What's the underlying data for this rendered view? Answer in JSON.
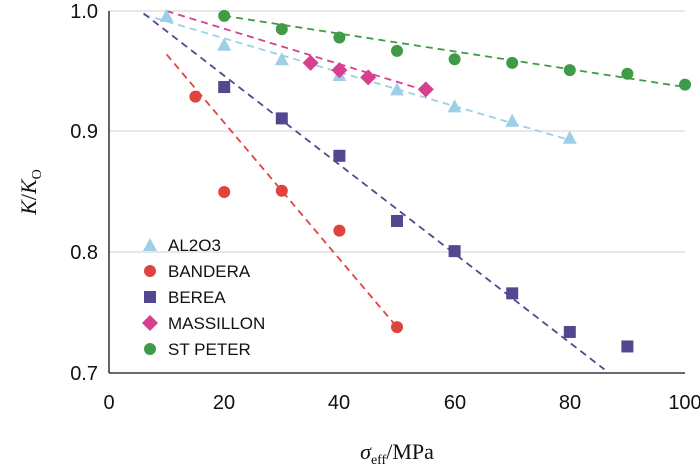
{
  "chart_data": {
    "type": "scatter",
    "xlabel": {
      "symbol": "σ",
      "sub": "eff",
      "unit": "/MPa"
    },
    "ylabel": {
      "k": "K",
      "slash": "/",
      "k0": "K",
      "sub": "O"
    },
    "xlim": [
      0,
      100
    ],
    "ylim": [
      0.7,
      1.0
    ],
    "xticks": [
      0,
      20,
      40,
      60,
      80,
      100
    ],
    "yticks": [
      0.7,
      0.8,
      0.9,
      1.0
    ],
    "xtick_labels": [
      "0",
      "20",
      "40",
      "60",
      "80",
      "100"
    ],
    "ytick_labels": [
      "0.7",
      "0.8",
      "0.9",
      "1.0"
    ],
    "legend_position": "bottom-left",
    "series": [
      {
        "name": "AL2O3",
        "marker": "triangle",
        "color": "#9ecfe6",
        "x": [
          10,
          20,
          30,
          40,
          50,
          60,
          70,
          80
        ],
        "y": [
          0.996,
          0.972,
          0.96,
          0.947,
          0.935,
          0.921,
          0.909,
          0.895
        ],
        "fit": {
          "x": [
            6,
            80
          ],
          "y": [
            0.997,
            0.893
          ]
        }
      },
      {
        "name": "BANDERA",
        "marker": "circle",
        "color": "#e0433d",
        "x": [
          15,
          20,
          30,
          40,
          50
        ],
        "y": [
          0.929,
          0.85,
          0.851,
          0.818,
          0.738
        ],
        "fit": {
          "x": [
            10,
            50
          ],
          "y": [
            0.964,
            0.738
          ]
        }
      },
      {
        "name": "BEREA",
        "marker": "square",
        "color": "#54478f",
        "x": [
          20,
          30,
          40,
          50,
          60,
          70,
          80,
          90
        ],
        "y": [
          0.937,
          0.911,
          0.88,
          0.826,
          0.801,
          0.766,
          0.734,
          0.722
        ],
        "fit": {
          "x": [
            6,
            86
          ],
          "y": [
            0.998,
            0.703
          ]
        }
      },
      {
        "name": "MASSILLON",
        "marker": "diamond",
        "color": "#d6408f",
        "x": [
          35,
          40,
          45,
          55
        ],
        "y": [
          0.957,
          0.951,
          0.945,
          0.935
        ],
        "fit": {
          "x": [
            10,
            55
          ],
          "y": [
            1.0,
            0.934
          ]
        }
      },
      {
        "name": "ST  PETER",
        "marker": "circle",
        "color": "#3f9b47",
        "x": [
          20,
          30,
          40,
          50,
          60,
          70,
          80,
          90,
          100
        ],
        "y": [
          0.996,
          0.985,
          0.978,
          0.967,
          0.96,
          0.957,
          0.951,
          0.948,
          0.939
        ],
        "fit": {
          "x": [
            20,
            100
          ],
          "y": [
            0.996,
            0.937
          ]
        }
      }
    ]
  }
}
